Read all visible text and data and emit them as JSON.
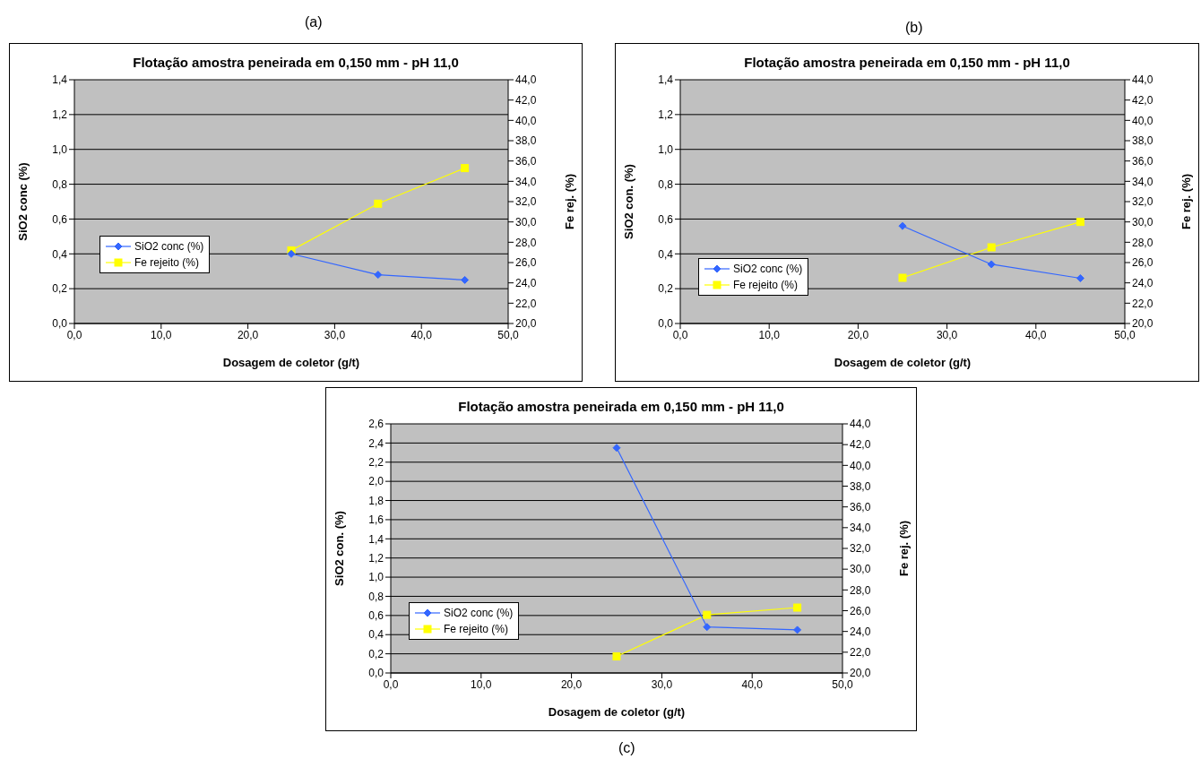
{
  "chart_data": [
    {
      "type": "line",
      "title": "Flotação amostra peneirada em 0,150 mm - pH 11,0",
      "xlabel": "Dosagem de coletor (g/t)",
      "ylabel": "SiO2 conc (%)",
      "y2label": "Fe rej. (%)",
      "annotations": [
        "(a)"
      ],
      "x": [
        25,
        35,
        45
      ],
      "series": [
        {
          "name": "SiO2 conc (%)",
          "color": "#3366ff",
          "marker": "diamond",
          "values": [
            0.4,
            0.28,
            0.25
          ]
        },
        {
          "name": "Fe rejeito (%)",
          "color": "#ffff00",
          "marker": "square",
          "axis": "y2",
          "values": [
            27.2,
            31.8,
            35.3
          ]
        }
      ],
      "xlim": [
        0,
        50
      ],
      "xticks": [
        {
          "value": 0,
          "label": "0,0"
        },
        {
          "value": 10,
          "label": "10,0"
        },
        {
          "value": 20,
          "label": "20,0"
        },
        {
          "value": 30,
          "label": "30,0"
        },
        {
          "value": 40,
          "label": "40,0"
        },
        {
          "value": 50,
          "label": "50,0"
        }
      ],
      "ylim": [
        0,
        1.4
      ],
      "yticks": [
        {
          "value": 0,
          "label": "0,0"
        },
        {
          "value": 0.2,
          "label": "0,2"
        },
        {
          "value": 0.4,
          "label": "0,4"
        },
        {
          "value": 0.6,
          "label": "0,6"
        },
        {
          "value": 0.8,
          "label": "0,8"
        },
        {
          "value": 1.0,
          "label": "1,0"
        },
        {
          "value": 1.2,
          "label": "1,2"
        },
        {
          "value": 1.4,
          "label": "1,4"
        }
      ],
      "y2lim": [
        20,
        44
      ],
      "y2ticks": [
        {
          "value": 20,
          "label": "20,0"
        },
        {
          "value": 22,
          "label": "22,0"
        },
        {
          "value": 24,
          "label": "24,0"
        },
        {
          "value": 26,
          "label": "26,0"
        },
        {
          "value": 28,
          "label": "28,0"
        },
        {
          "value": 30,
          "label": "30,0"
        },
        {
          "value": 32,
          "label": "32,0"
        },
        {
          "value": 34,
          "label": "34,0"
        },
        {
          "value": 36,
          "label": "36,0"
        },
        {
          "value": 38,
          "label": "38,0"
        },
        {
          "value": 40,
          "label": "40,0"
        },
        {
          "value": 42,
          "label": "42,0"
        },
        {
          "value": 44,
          "label": "44,0"
        }
      ],
      "grid": "y",
      "legend": "left"
    },
    {
      "type": "line",
      "title": "Flotação amostra peneirada em 0,150 mm - pH 11,0",
      "xlabel": "Dosagem de coletor (g/t)",
      "ylabel": "SiO2 con. (%)",
      "y2label": "Fe rej. (%)",
      "annotations": [
        "(b)"
      ],
      "x": [
        25,
        35,
        45
      ],
      "series": [
        {
          "name": "SiO2 conc (%)",
          "color": "#3366ff",
          "marker": "diamond",
          "values": [
            0.56,
            0.34,
            0.26
          ]
        },
        {
          "name": "Fe rejeito (%)",
          "color": "#ffff00",
          "marker": "square",
          "axis": "y2",
          "values": [
            24.5,
            27.5,
            30.0
          ]
        }
      ],
      "xlim": [
        0,
        50
      ],
      "xticks": [
        {
          "value": 0,
          "label": "0,0"
        },
        {
          "value": 10,
          "label": "10,0"
        },
        {
          "value": 20,
          "label": "20,0"
        },
        {
          "value": 30,
          "label": "30,0"
        },
        {
          "value": 40,
          "label": "40,0"
        },
        {
          "value": 50,
          "label": "50,0"
        }
      ],
      "ylim": [
        0,
        1.4
      ],
      "yticks": [
        {
          "value": 0,
          "label": "0,0"
        },
        {
          "value": 0.2,
          "label": "0,2"
        },
        {
          "value": 0.4,
          "label": "0,4"
        },
        {
          "value": 0.6,
          "label": "0,6"
        },
        {
          "value": 0.8,
          "label": "0,8"
        },
        {
          "value": 1.0,
          "label": "1,0"
        },
        {
          "value": 1.2,
          "label": "1,2"
        },
        {
          "value": 1.4,
          "label": "1,4"
        }
      ],
      "y2lim": [
        20,
        44
      ],
      "y2ticks": [
        {
          "value": 20,
          "label": "20,0"
        },
        {
          "value": 22,
          "label": "22,0"
        },
        {
          "value": 24,
          "label": "24,0"
        },
        {
          "value": 26,
          "label": "26,0"
        },
        {
          "value": 28,
          "label": "28,0"
        },
        {
          "value": 30,
          "label": "30,0"
        },
        {
          "value": 32,
          "label": "32,0"
        },
        {
          "value": 34,
          "label": "34,0"
        },
        {
          "value": 36,
          "label": "36,0"
        },
        {
          "value": 38,
          "label": "38,0"
        },
        {
          "value": 40,
          "label": "40,0"
        },
        {
          "value": 42,
          "label": "42,0"
        },
        {
          "value": 44,
          "label": "44,0"
        }
      ],
      "grid": "y",
      "legend": "bottom left"
    },
    {
      "type": "line",
      "title": "Flotação amostra peneirada em 0,150 mm - pH 11,0",
      "xlabel": "Dosagem de coletor (g/t)",
      "ylabel": "SiO2 con. (%)",
      "y2label": "Fe rej. (%)",
      "annotations": [
        "(c)"
      ],
      "x": [
        25,
        35,
        45
      ],
      "series": [
        {
          "name": "SiO2 conc (%)",
          "color": "#3366ff",
          "marker": "diamond",
          "values": [
            2.35,
            0.48,
            0.45
          ]
        },
        {
          "name": "Fe rejeito (%)",
          "color": "#ffff00",
          "marker": "square",
          "axis": "y2",
          "values": [
            21.6,
            25.6,
            26.3
          ]
        }
      ],
      "xlim": [
        0,
        50
      ],
      "xticks": [
        {
          "value": 0,
          "label": "0,0"
        },
        {
          "value": 10,
          "label": "10,0"
        },
        {
          "value": 20,
          "label": "20,0"
        },
        {
          "value": 30,
          "label": "30,0"
        },
        {
          "value": 40,
          "label": "40,0"
        },
        {
          "value": 50,
          "label": "50,0"
        }
      ],
      "ylim": [
        0,
        2.6
      ],
      "yticks": [
        {
          "value": 0,
          "label": "0,0"
        },
        {
          "value": 0.2,
          "label": "0,2"
        },
        {
          "value": 0.4,
          "label": "0,4"
        },
        {
          "value": 0.6,
          "label": "0,6"
        },
        {
          "value": 0.8,
          "label": "0,8"
        },
        {
          "value": 1.0,
          "label": "1,0"
        },
        {
          "value": 1.2,
          "label": "1,2"
        },
        {
          "value": 1.4,
          "label": "1,4"
        },
        {
          "value": 1.6,
          "label": "1,6"
        },
        {
          "value": 1.8,
          "label": "1,8"
        },
        {
          "value": 2.0,
          "label": "2,0"
        },
        {
          "value": 2.2,
          "label": "2,2"
        },
        {
          "value": 2.4,
          "label": "2,4"
        },
        {
          "value": 2.6,
          "label": "2,6"
        }
      ],
      "y2lim": [
        20,
        44
      ],
      "y2ticks": [
        {
          "value": 20,
          "label": "20,0"
        },
        {
          "value": 22,
          "label": "22,0"
        },
        {
          "value": 24,
          "label": "24,0"
        },
        {
          "value": 26,
          "label": "26,0"
        },
        {
          "value": 28,
          "label": "28,0"
        },
        {
          "value": 30,
          "label": "30,0"
        },
        {
          "value": 32,
          "label": "32,0"
        },
        {
          "value": 34,
          "label": "34,0"
        },
        {
          "value": 36,
          "label": "36,0"
        },
        {
          "value": 38,
          "label": "38,0"
        },
        {
          "value": 40,
          "label": "40,0"
        },
        {
          "value": 42,
          "label": "42,0"
        },
        {
          "value": 44,
          "label": "44,0"
        }
      ],
      "grid": "y",
      "legend": "bottom left"
    }
  ]
}
